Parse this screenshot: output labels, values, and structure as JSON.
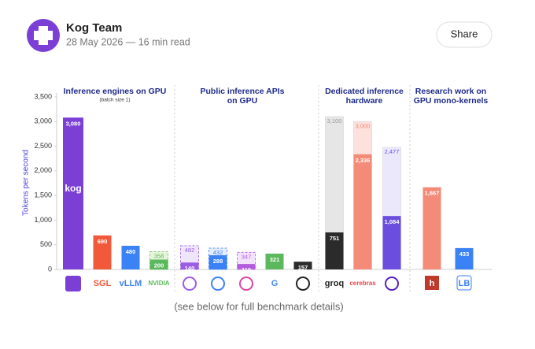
{
  "header": {
    "author": "Kog Team",
    "meta": "28 May 2026 — 16 min read",
    "button": "Share"
  },
  "chart_data": {
    "type": "bar",
    "y_label": "Tokens per second",
    "ylim": [
      0,
      3500
    ],
    "yticks": [
      0,
      500,
      {
        "value": 1000,
        "label": "1,000"
      },
      {
        "value": 1500,
        "label": "1,500"
      },
      {
        "value": 2000,
        "label": "2,000"
      },
      {
        "value": 2500,
        "label": "2,500"
      },
      {
        "value": 3000,
        "label": "3,000"
      },
      {
        "value": 3500,
        "label": "3,500"
      }
    ],
    "groups": [
      {
        "lines": [
          "Inference engines on GPU"
        ],
        "note": "(batch size 1)"
      },
      {
        "lines": [
          "Public inference APIs",
          "on GPU"
        ]
      },
      {
        "lines": [
          "Dedicated inference",
          "hardware"
        ]
      },
      {
        "lines": [
          "Research work on",
          "GPU mono-kernels"
        ]
      }
    ],
    "categories": [
      null,
      "SGL",
      "vLLM",
      "NVIDIA",
      null,
      null,
      null,
      "G",
      null,
      "groq",
      "cerebras",
      null,
      "h",
      "LB"
    ],
    "bar_annotation": "kog",
    "values": [
      3080,
      690,
      480,
      200,
      140,
      288,
      110,
      321,
      157,
      751,
      2336,
      1084,
      1667,
      433
    ],
    "value_labels": [
      "3,080",
      "690",
      "480",
      "200",
      "140",
      "288",
      "110",
      "321",
      "157",
      "751",
      "2,336",
      "1,084",
      "1,667",
      "433"
    ],
    "colors": [
      "#7b3fd6",
      "#f2583a",
      "#3b82f6",
      "#5cb85c",
      "#9b5de5",
      "#3b82f6",
      "#b35cdc",
      "#5cb85c",
      "#2b2b2b",
      "#2b2b2b",
      "#f48a78",
      "#6b4ee0",
      "#f48a78",
      "#3b82f6"
    ],
    "peak_values": [
      null,
      null,
      null,
      358,
      482,
      432,
      347,
      null,
      null,
      3100,
      3000,
      2477,
      null,
      null
    ],
    "peak_labels": [
      null,
      null,
      null,
      "358",
      "482",
      "432",
      "347",
      null,
      null,
      "3,100",
      "3,000",
      "2,477",
      null,
      null
    ],
    "peak_colors": [
      null,
      null,
      null,
      "#e6f4d9",
      "#efe6fb",
      "#e3edfd",
      "#f3e3fa",
      null,
      null,
      "#e6e6e6",
      "#fde1dc",
      "#ece8fb",
      null,
      null
    ],
    "caption": "(see below for full benchmark details)"
  }
}
